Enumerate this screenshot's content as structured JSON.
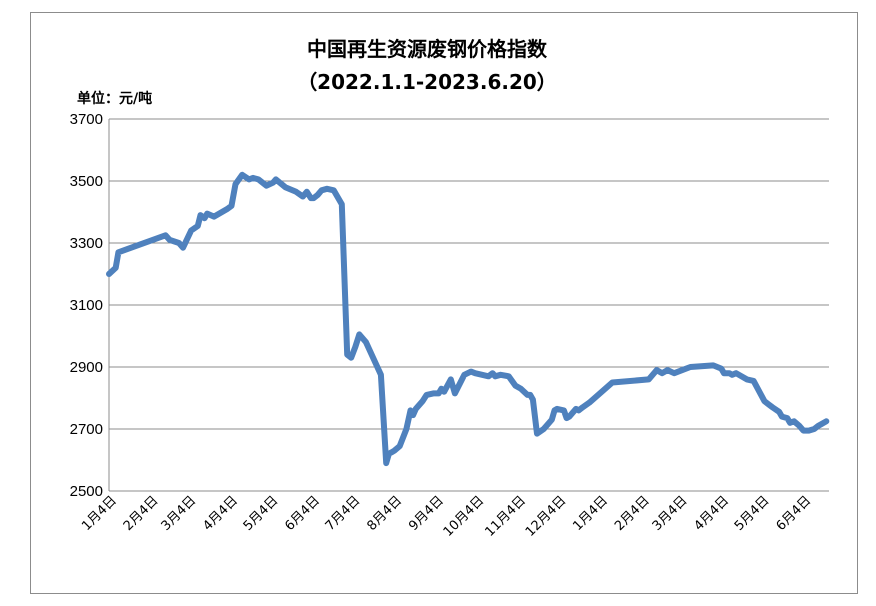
{
  "chart_data": {
    "type": "line",
    "title": "中国再生资源废钢价格指数",
    "subtitle": "（2022.1.1-2023.6.20）",
    "unit_label": "单位：元/吨",
    "xlabel": "",
    "ylabel": "",
    "ylim": [
      2500,
      3700
    ],
    "yticks": [
      2500,
      2700,
      2900,
      3100,
      3300,
      3500,
      3700
    ],
    "grid": true,
    "legend": "none",
    "line_color": "#4f81bd",
    "x_tick_labels": [
      "1月4日",
      "2月4日",
      "3月4日",
      "4月4日",
      "5月4日",
      "6月4日",
      "7月4日",
      "8月4日",
      "9月4日",
      "10月4日",
      "11月4日",
      "12月4日",
      "1月4日",
      "2月4日",
      "3月4日",
      "4月4日",
      "5月4日",
      "6月4日"
    ],
    "series": [
      {
        "x": [
          "2022-01-01",
          "2022-01-06",
          "2022-01-08",
          "2022-02-12",
          "2022-02-15",
          "2022-02-22",
          "2022-02-25",
          "2022-03-03",
          "2022-03-08",
          "2022-03-10",
          "2022-03-13",
          "2022-03-15",
          "2022-03-20",
          "2022-03-30",
          "2022-04-02",
          "2022-04-05",
          "2022-04-10",
          "2022-04-15",
          "2022-04-18",
          "2022-04-22",
          "2022-04-28",
          "2022-05-03",
          "2022-05-05",
          "2022-05-12",
          "2022-05-20",
          "2022-05-25",
          "2022-05-28",
          "2022-05-31",
          "2022-06-02",
          "2022-06-05",
          "2022-06-08",
          "2022-06-12",
          "2022-06-17",
          "2022-06-23",
          "2022-06-27",
          "2022-06-30",
          "2022-07-03",
          "2022-07-06",
          "2022-07-11",
          "2022-07-22",
          "2022-07-26",
          "2022-07-28",
          "2022-07-30",
          "2022-08-01",
          "2022-08-05",
          "2022-08-10",
          "2022-08-13",
          "2022-08-15",
          "2022-08-17",
          "2022-08-22",
          "2022-08-25",
          "2022-08-30",
          "2022-09-03",
          "2022-09-05",
          "2022-09-07",
          "2022-09-12",
          "2022-09-15",
          "2022-09-22",
          "2022-09-27",
          "2022-09-30",
          "2022-10-10",
          "2022-10-13",
          "2022-10-15",
          "2022-10-19",
          "2022-10-25",
          "2022-10-30",
          "2022-11-03",
          "2022-11-08",
          "2022-11-10",
          "2022-11-12",
          "2022-11-15",
          "2022-11-20",
          "2022-11-26",
          "2022-11-28",
          "2022-11-30",
          "2022-12-05",
          "2022-12-07",
          "2022-12-09",
          "2022-12-14",
          "2022-12-16",
          "2022-12-19",
          "2022-12-24",
          "2023-01-10",
          "2023-02-06",
          "2023-02-12",
          "2023-02-16",
          "2023-02-20",
          "2023-02-25",
          "2023-03-03",
          "2023-03-09",
          "2023-03-26",
          "2023-04-01",
          "2023-04-03",
          "2023-04-07",
          "2023-04-09",
          "2023-04-12",
          "2023-04-20",
          "2023-04-25",
          "2023-05-03",
          "2023-05-06",
          "2023-05-09",
          "2023-05-14",
          "2023-05-16",
          "2023-05-20",
          "2023-05-22",
          "2023-05-25",
          "2023-05-29",
          "2023-06-01",
          "2023-06-05",
          "2023-06-09",
          "2023-06-12",
          "2023-06-14",
          "2023-06-18"
        ],
        "values": [
          3200,
          3220,
          3270,
          3325,
          3310,
          3300,
          3285,
          3340,
          3355,
          3390,
          3380,
          3395,
          3385,
          3410,
          3420,
          3490,
          3520,
          3505,
          3510,
          3505,
          3485,
          3495,
          3505,
          3480,
          3465,
          3450,
          3465,
          3445,
          3445,
          3455,
          3470,
          3475,
          3470,
          3425,
          2940,
          2930,
          2965,
          3005,
          2980,
          2875,
          2590,
          2620,
          2625,
          2630,
          2645,
          2700,
          2760,
          2745,
          2765,
          2790,
          2810,
          2815,
          2815,
          2830,
          2820,
          2860,
          2815,
          2875,
          2885,
          2880,
          2870,
          2880,
          2870,
          2875,
          2870,
          2840,
          2830,
          2810,
          2810,
          2795,
          2685,
          2700,
          2730,
          2760,
          2765,
          2760,
          2735,
          2740,
          2765,
          2760,
          2770,
          2785,
          2850,
          2860,
          2890,
          2880,
          2890,
          2880,
          2890,
          2900,
          2905,
          2895,
          2880,
          2880,
          2875,
          2880,
          2860,
          2855,
          2790,
          2780,
          2770,
          2755,
          2740,
          2735,
          2720,
          2725,
          2710,
          2695,
          2695,
          2700,
          2710,
          2715,
          2725
        ]
      }
    ]
  }
}
